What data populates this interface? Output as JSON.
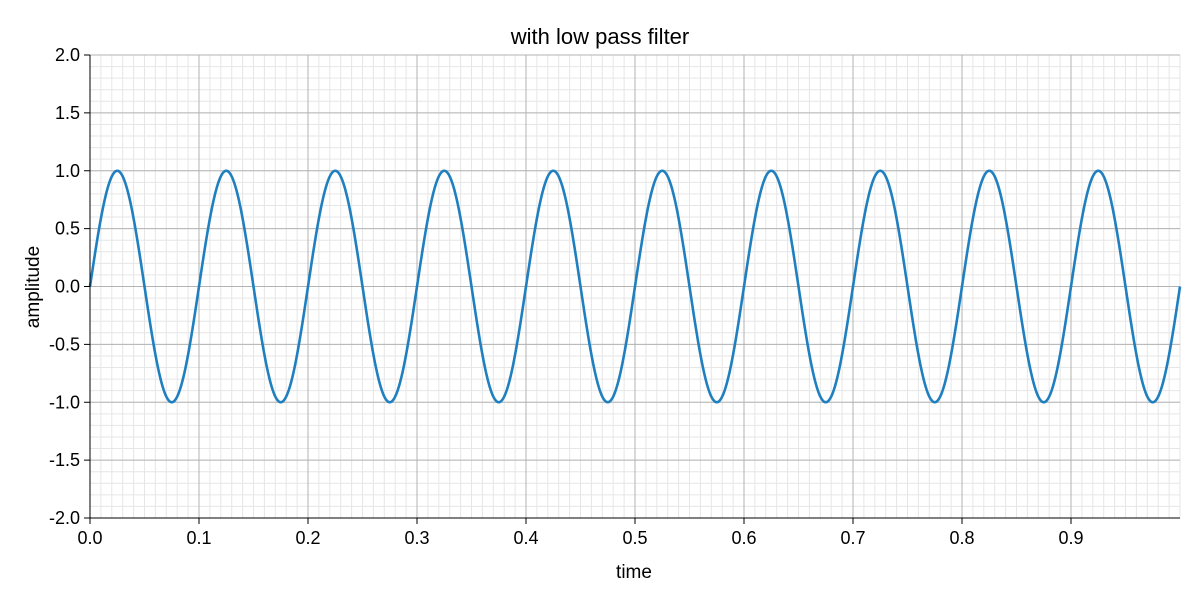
{
  "chart_data": {
    "type": "line",
    "title": "with low pass filter",
    "xlabel": "time",
    "ylabel": "amplitude",
    "xlim": [
      0.0,
      1.0
    ],
    "ylim": [
      -2.0,
      2.0
    ],
    "x_ticks": [
      "0.0",
      "0.1",
      "0.2",
      "0.3",
      "0.4",
      "0.5",
      "0.6",
      "0.7",
      "0.8",
      "0.9"
    ],
    "y_ticks": [
      "2.0",
      "1.5",
      "1.0",
      "0.5",
      "0.0",
      "-0.5",
      "-1.0",
      "-1.5",
      "-2.0"
    ],
    "grid": true,
    "series": [
      {
        "color": "#1f7fbf",
        "frequency_hz": 10,
        "amplitude": 1.0,
        "x": [
          0.0,
          0.025,
          0.05,
          0.075,
          0.1,
          0.125,
          0.15,
          0.175,
          0.2,
          0.225,
          0.25,
          0.275,
          0.3,
          0.325,
          0.35,
          0.375,
          0.4,
          0.425,
          0.45,
          0.475,
          0.5,
          0.525,
          0.55,
          0.575,
          0.6,
          0.625,
          0.65,
          0.675,
          0.7,
          0.725,
          0.75,
          0.775,
          0.8,
          0.825,
          0.85,
          0.875,
          0.9,
          0.925,
          0.95,
          0.975,
          1.0
        ],
        "values": [
          0.0,
          1.0,
          0.0,
          -1.0,
          0.0,
          1.0,
          0.0,
          -1.0,
          0.0,
          1.0,
          0.0,
          -1.0,
          0.0,
          1.0,
          0.0,
          -1.0,
          0.0,
          1.0,
          0.0,
          -1.0,
          0.0,
          1.0,
          0.0,
          -1.0,
          0.0,
          1.0,
          0.0,
          -1.0,
          0.0,
          1.0,
          0.0,
          -1.0,
          0.0,
          1.0,
          0.0,
          -1.0,
          0.0,
          1.0,
          0.0,
          -1.0,
          0.0
        ]
      }
    ]
  }
}
